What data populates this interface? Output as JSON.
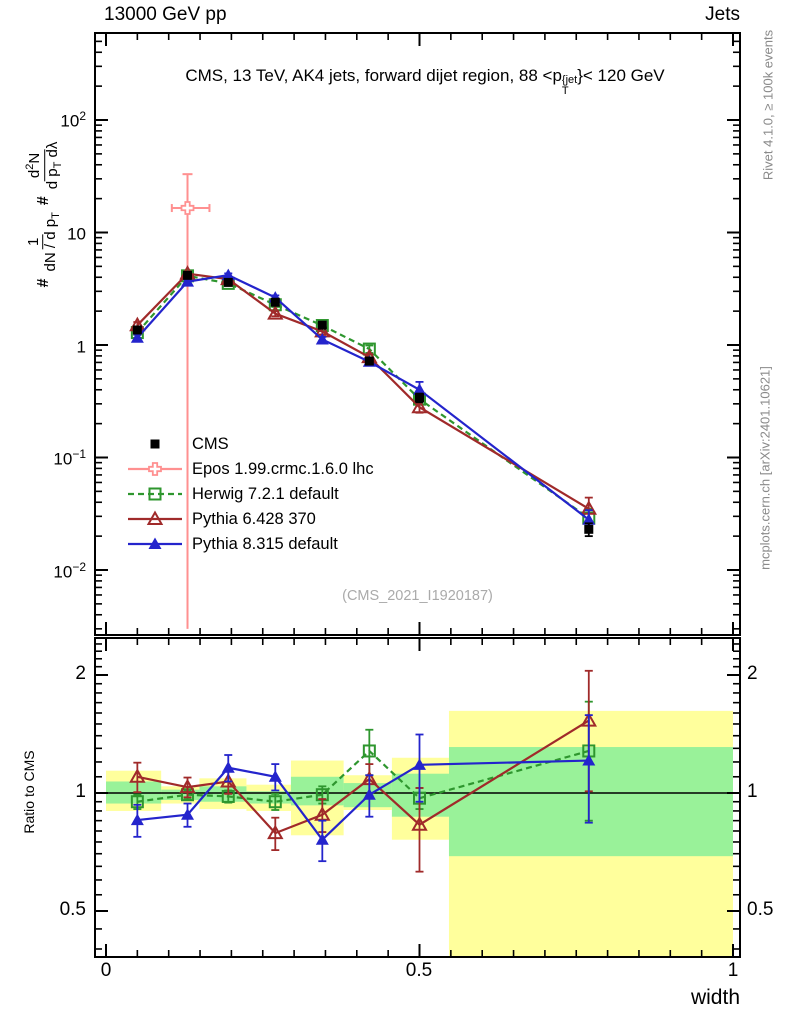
{
  "header": {
    "left": "13000 GeV pp",
    "right": "Jets"
  },
  "title": {
    "prefix": "CMS, 13 TeV, AK4 jets, forward dijet region, 88 <p",
    "sup": "{jet",
    "sub": "T",
    "suffix": "}< 120 GeV"
  },
  "y_axis_label": {
    "hash1": "#",
    "frac1_num": "1",
    "frac1_den_pre": "dN / d p",
    "frac1_den_sub": "T",
    "hash2": "#",
    "frac2_num_pre": "d",
    "frac2_num_sup": "2",
    "frac2_num_post": "N",
    "frac2_den_pre": "d p",
    "frac2_den_sub": "T",
    "frac2_den_post": " dλ"
  },
  "ratio_axis_label": "Ratio to CMS",
  "right_margin": {
    "top": "Rivet 4.1.0, ≥ 100k events",
    "bottom": "mcplots.cern.ch [arXiv:2401.10621]"
  },
  "watermark": "(CMS_2021_I1920187)",
  "axis_ticks": {
    "main_y": [
      {
        "base": "10",
        "exp": "2"
      },
      {
        "base": "10",
        "exp": ""
      },
      {
        "base": "1",
        "exp": ""
      },
      {
        "base": "10",
        "exp": "−1"
      },
      {
        "base": "10",
        "exp": "−2"
      }
    ],
    "ratio_left": [
      "2",
      "1",
      "0.5"
    ],
    "ratio_right": [
      "2",
      "1",
      "0.5"
    ],
    "x": [
      "0",
      "0.5",
      "1"
    ],
    "x_label": "width"
  },
  "chart_data": {
    "type": "line",
    "title": "CMS, 13 TeV, AK4 jets, forward dijet region, 88 <pT{jet}< 120 GeV",
    "xlabel": "width",
    "ylabel": "# 1/(dN/dpT) # d2N/(dpT dlambda)",
    "ratio_ylabel": "Ratio to CMS",
    "x_range": [
      0,
      1
    ],
    "main_y_scale": "log",
    "main_y_range": [
      0.0028,
      560
    ],
    "ratio_y_scale": "log",
    "ratio_y_range": [
      0.38,
      2.45
    ],
    "bin_centers": [
      0.05,
      0.13,
      0.195,
      0.27,
      0.345,
      0.42,
      0.5,
      0.77
    ],
    "bin_edges": [
      0.0,
      0.088,
      0.149,
      0.224,
      0.295,
      0.379,
      0.456,
      0.547,
      1.0
    ],
    "band_colors": {
      "yellow": "#ffff9c",
      "green": "#99f299"
    },
    "series": [
      {
        "name": "CMS",
        "marker": "square-filled",
        "color": "#000000",
        "line": "none",
        "values": [
          1.36,
          4.16,
          3.6,
          2.4,
          1.5,
          0.72,
          0.34,
          0.023
        ],
        "errors": [
          0.08,
          0.2,
          0.18,
          0.12,
          0.08,
          0.05,
          0.03,
          0.003
        ]
      },
      {
        "name": "Epos 1.99.crmc.1.6.0 lhc",
        "marker": "plus-open",
        "color": "#ff9090",
        "line": "solid",
        "points": [
          {
            "x": 0.13,
            "y": 16.5,
            "x_err_lo": 0.105,
            "x_err_hi": 0.165,
            "y_err_hi": 33,
            "y_err_lo": 0.003
          }
        ]
      },
      {
        "name": "Herwig 7.2.1 default",
        "marker": "square-open",
        "color": "#2e962e",
        "line": "dashed",
        "values": [
          1.29,
          4.12,
          3.53,
          2.28,
          1.49,
          0.92,
          0.33,
          0.029
        ],
        "errors": [
          0.06,
          0.15,
          0.12,
          0.1,
          0.07,
          0.07,
          0.03,
          0.006
        ],
        "ratio": [
          0.95,
          0.99,
          0.98,
          0.95,
          0.99,
          1.28,
          0.97,
          1.28
        ],
        "ratio_errors": [
          0.04,
          0.025,
          0.035,
          0.045,
          0.05,
          0.17,
          0.06,
          0.43
        ]
      },
      {
        "name": "Pythia 6.428 370",
        "marker": "triangle-open",
        "color": "#a02a2a",
        "line": "solid",
        "values": [
          1.5,
          4.31,
          3.85,
          1.9,
          1.32,
          0.78,
          0.28,
          0.035
        ],
        "errors": [
          0.1,
          0.2,
          0.15,
          0.1,
          0.08,
          0.05,
          0.03,
          0.009
        ],
        "ratio": [
          1.1,
          1.035,
          1.07,
          0.79,
          0.88,
          1.085,
          0.83,
          1.53
        ],
        "ratio_errors": [
          0.095,
          0.06,
          0.075,
          0.075,
          0.085,
          0.1,
          0.2,
          0.52
        ]
      },
      {
        "name": "Pythia 8.315 default",
        "marker": "triangle-filled",
        "color": "#2424cc",
        "line": "solid",
        "values": [
          1.16,
          3.66,
          4.18,
          2.64,
          1.12,
          0.71,
          0.4,
          0.028
        ],
        "errors": [
          0.08,
          0.15,
          0.15,
          0.12,
          0.06,
          0.05,
          0.07,
          0.006
        ],
        "ratio": [
          0.853,
          0.88,
          1.16,
          1.1,
          0.76,
          0.99,
          1.18,
          1.21
        ],
        "ratio_errors": [
          0.08,
          0.06,
          0.09,
          0.085,
          0.09,
          0.12,
          0.23,
          0.37
        ]
      }
    ],
    "ratio_bands": [
      {
        "x_lo": 0.0,
        "x_hi": 0.088,
        "yellow": [
          0.9,
          1.14
        ],
        "green": [
          0.94,
          1.07
        ]
      },
      {
        "x_lo": 0.088,
        "x_hi": 0.149,
        "yellow": [
          0.94,
          1.04
        ],
        "green": [
          0.96,
          1.02
        ]
      },
      {
        "x_lo": 0.149,
        "x_hi": 0.224,
        "yellow": [
          0.91,
          1.09
        ],
        "green": [
          0.95,
          1.04
        ]
      },
      {
        "x_lo": 0.224,
        "x_hi": 0.295,
        "yellow": [
          0.9,
          1.05
        ],
        "green": [
          0.94,
          1.01
        ]
      },
      {
        "x_lo": 0.295,
        "x_hi": 0.379,
        "yellow": [
          0.78,
          1.21
        ],
        "green": [
          0.93,
          1.1
        ]
      },
      {
        "x_lo": 0.379,
        "x_hi": 0.456,
        "yellow": [
          0.905,
          1.11
        ],
        "green": [
          0.92,
          1.06
        ]
      },
      {
        "x_lo": 0.456,
        "x_hi": 0.547,
        "yellow": [
          0.76,
          1.23
        ],
        "green": [
          0.87,
          1.12
        ]
      },
      {
        "x_lo": 0.547,
        "x_hi": 1.0,
        "yellow": [
          0.36,
          1.62
        ],
        "green": [
          0.69,
          1.31
        ]
      }
    ]
  }
}
